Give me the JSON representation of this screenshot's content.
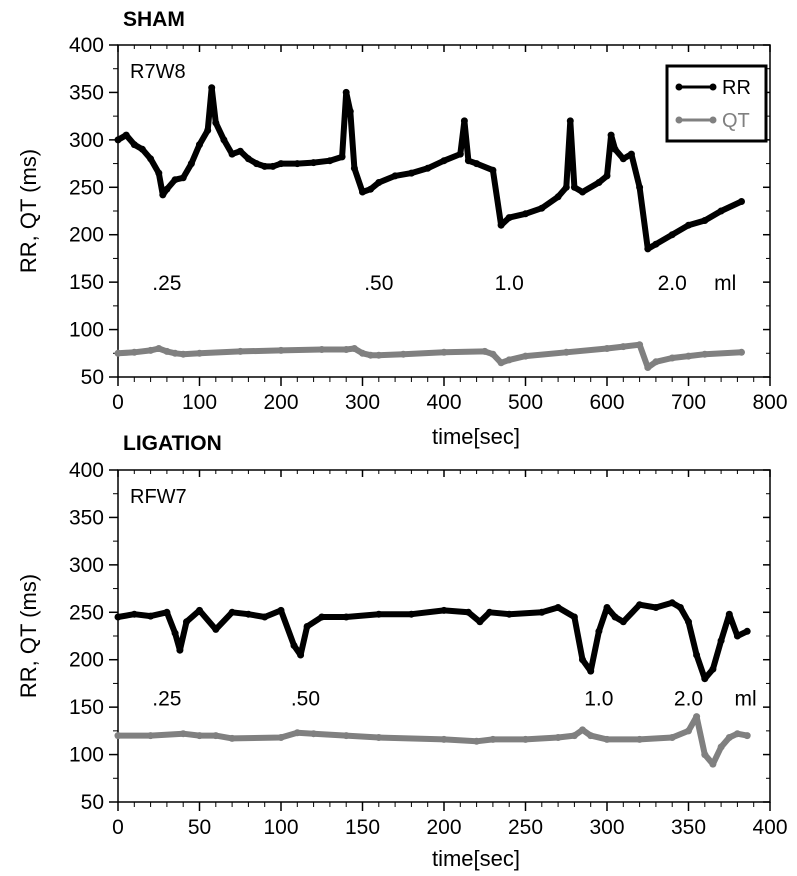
{
  "chart_data": [
    {
      "type": "line",
      "title": "SHAM",
      "animal_label": "R7W8",
      "xlabel": "time[sec]",
      "ylabel": "RR, QT (ms)",
      "xlim": [
        0,
        800
      ],
      "ylim": [
        50,
        400
      ],
      "xticks": [
        "0",
        "100",
        "200",
        "300",
        "400",
        "500",
        "600",
        "700",
        "800"
      ],
      "yticks": [
        "50",
        "100",
        "150",
        "200",
        "250",
        "300",
        "350",
        "400"
      ],
      "legend": {
        "placement": "top-right",
        "entries": [
          {
            "name": "RR",
            "color": "#000000"
          },
          {
            "name": "QT",
            "color": "#808080"
          }
        ]
      },
      "annotations": [
        {
          "text": ".25",
          "x": 60,
          "y": 150
        },
        {
          "text": ".50",
          "x": 320,
          "y": 150
        },
        {
          "text": "1.0",
          "x": 480,
          "y": 150
        },
        {
          "text": "2.0",
          "x": 680,
          "y": 150
        },
        {
          "text": "ml",
          "x": 745,
          "y": 150
        }
      ],
      "series": [
        {
          "name": "RR",
          "color": "#000000",
          "x": [
            0,
            10,
            20,
            30,
            40,
            50,
            55,
            60,
            70,
            80,
            90,
            100,
            110,
            115,
            120,
            130,
            140,
            150,
            160,
            170,
            180,
            190,
            200,
            220,
            240,
            260,
            275,
            280,
            285,
            290,
            300,
            310,
            320,
            340,
            360,
            380,
            400,
            420,
            425,
            430,
            440,
            460,
            470,
            480,
            500,
            520,
            540,
            550,
            555,
            560,
            570,
            590,
            600,
            605,
            610,
            620,
            630,
            640,
            650,
            660,
            680,
            700,
            720,
            740,
            765
          ],
          "y": [
            300,
            305,
            295,
            290,
            280,
            265,
            242,
            248,
            258,
            260,
            275,
            295,
            310,
            355,
            318,
            300,
            285,
            288,
            280,
            275,
            272,
            272,
            275,
            275,
            276,
            278,
            282,
            350,
            330,
            270,
            245,
            248,
            255,
            262,
            265,
            270,
            278,
            285,
            320,
            278,
            275,
            268,
            210,
            218,
            222,
            228,
            240,
            250,
            320,
            250,
            245,
            255,
            262,
            305,
            290,
            280,
            285,
            250,
            185,
            190,
            200,
            210,
            215,
            225,
            235
          ]
        },
        {
          "name": "QT",
          "color": "#808080",
          "x": [
            0,
            20,
            40,
            50,
            60,
            70,
            80,
            100,
            150,
            200,
            250,
            280,
            290,
            300,
            310,
            320,
            350,
            400,
            450,
            460,
            470,
            480,
            500,
            550,
            600,
            620,
            640,
            650,
            660,
            680,
            700,
            720,
            765
          ],
          "y": [
            75,
            76,
            78,
            80,
            77,
            75,
            74,
            75,
            77,
            78,
            79,
            79,
            80,
            75,
            73,
            73,
            74,
            76,
            77,
            74,
            65,
            68,
            72,
            76,
            80,
            82,
            84,
            60,
            66,
            70,
            72,
            74,
            76
          ]
        }
      ]
    },
    {
      "type": "line",
      "title": "LIGATION",
      "animal_label": "RFW7",
      "xlabel": "time[sec]",
      "ylabel": "RR, QT (ms)",
      "xlim": [
        0,
        400
      ],
      "ylim": [
        50,
        400
      ],
      "xticks": [
        "0",
        "50",
        "100",
        "150",
        "200",
        "250",
        "300",
        "350",
        "400"
      ],
      "yticks": [
        "50",
        "100",
        "150",
        "200",
        "250",
        "300",
        "350",
        "400"
      ],
      "annotations": [
        {
          "text": ".25",
          "x": 30,
          "y": 160
        },
        {
          "text": ".50",
          "x": 115,
          "y": 160
        },
        {
          "text": "1.0",
          "x": 295,
          "y": 160
        },
        {
          "text": "2.0",
          "x": 350,
          "y": 160
        },
        {
          "text": "ml",
          "x": 385,
          "y": 160
        }
      ],
      "series": [
        {
          "name": "RR",
          "color": "#000000",
          "x": [
            0,
            10,
            20,
            30,
            35,
            38,
            42,
            50,
            60,
            70,
            80,
            90,
            100,
            108,
            112,
            116,
            125,
            140,
            160,
            180,
            200,
            215,
            222,
            228,
            240,
            260,
            270,
            280,
            285,
            290,
            295,
            300,
            305,
            310,
            320,
            330,
            340,
            345,
            350,
            355,
            360,
            365,
            370,
            375,
            380,
            386
          ],
          "y": [
            245,
            248,
            246,
            250,
            228,
            210,
            240,
            252,
            232,
            250,
            248,
            245,
            252,
            215,
            205,
            235,
            245,
            245,
            248,
            248,
            252,
            250,
            240,
            250,
            248,
            250,
            255,
            245,
            200,
            188,
            230,
            255,
            245,
            240,
            258,
            255,
            260,
            255,
            240,
            205,
            180,
            190,
            220,
            248,
            225,
            230
          ]
        },
        {
          "name": "QT",
          "color": "#808080",
          "x": [
            0,
            20,
            40,
            50,
            60,
            70,
            100,
            110,
            120,
            140,
            160,
            200,
            220,
            230,
            250,
            270,
            280,
            285,
            290,
            300,
            320,
            340,
            350,
            355,
            360,
            365,
            370,
            375,
            380,
            386
          ],
          "y": [
            120,
            120,
            122,
            120,
            120,
            117,
            118,
            123,
            122,
            120,
            118,
            116,
            114,
            116,
            116,
            118,
            120,
            126,
            120,
            116,
            116,
            118,
            125,
            140,
            100,
            90,
            108,
            118,
            122,
            120
          ]
        }
      ]
    }
  ]
}
